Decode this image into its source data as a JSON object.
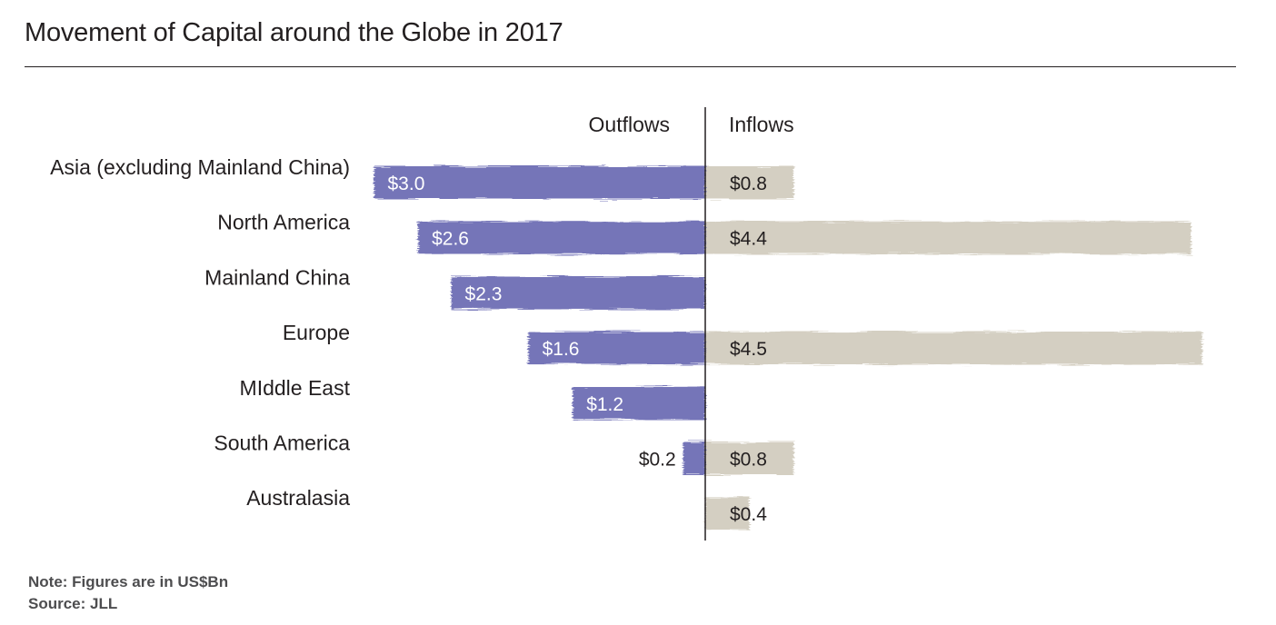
{
  "title": "Movement of Capital around the Globe in 2017",
  "notes": {
    "note": "Note:  Figures are in US$Bn",
    "source": "Source: JLL"
  },
  "colors": {
    "outflow": "#7474b8",
    "inflow": "#d4cfc2",
    "axis": "#231f20",
    "text": "#231f20",
    "label_on_bar": "#ffffff"
  },
  "chart_data": {
    "type": "bar",
    "orientation": "diverging-horizontal",
    "title": "Movement of Capital around the Globe in 2017",
    "unit": "US$Bn",
    "categories": [
      "Asia (excluding Mainland China)",
      "North America",
      "Mainland China",
      "Europe",
      "MIddle East",
      "South America",
      "Australasia"
    ],
    "series": [
      {
        "name": "Outflows",
        "values": [
          3.0,
          2.6,
          2.3,
          1.6,
          1.2,
          0.2,
          null
        ],
        "labels": [
          "$3.0",
          "$2.6",
          "$2.3",
          "$1.6",
          "$1.2",
          "$0.2",
          ""
        ]
      },
      {
        "name": "Inflows",
        "values": [
          0.8,
          4.4,
          null,
          4.5,
          null,
          0.8,
          0.4
        ],
        "labels": [
          "$0.8",
          "$4.4",
          "",
          "$4.5",
          "",
          "$0.8",
          "$0.4"
        ]
      }
    ],
    "grid": false
  }
}
